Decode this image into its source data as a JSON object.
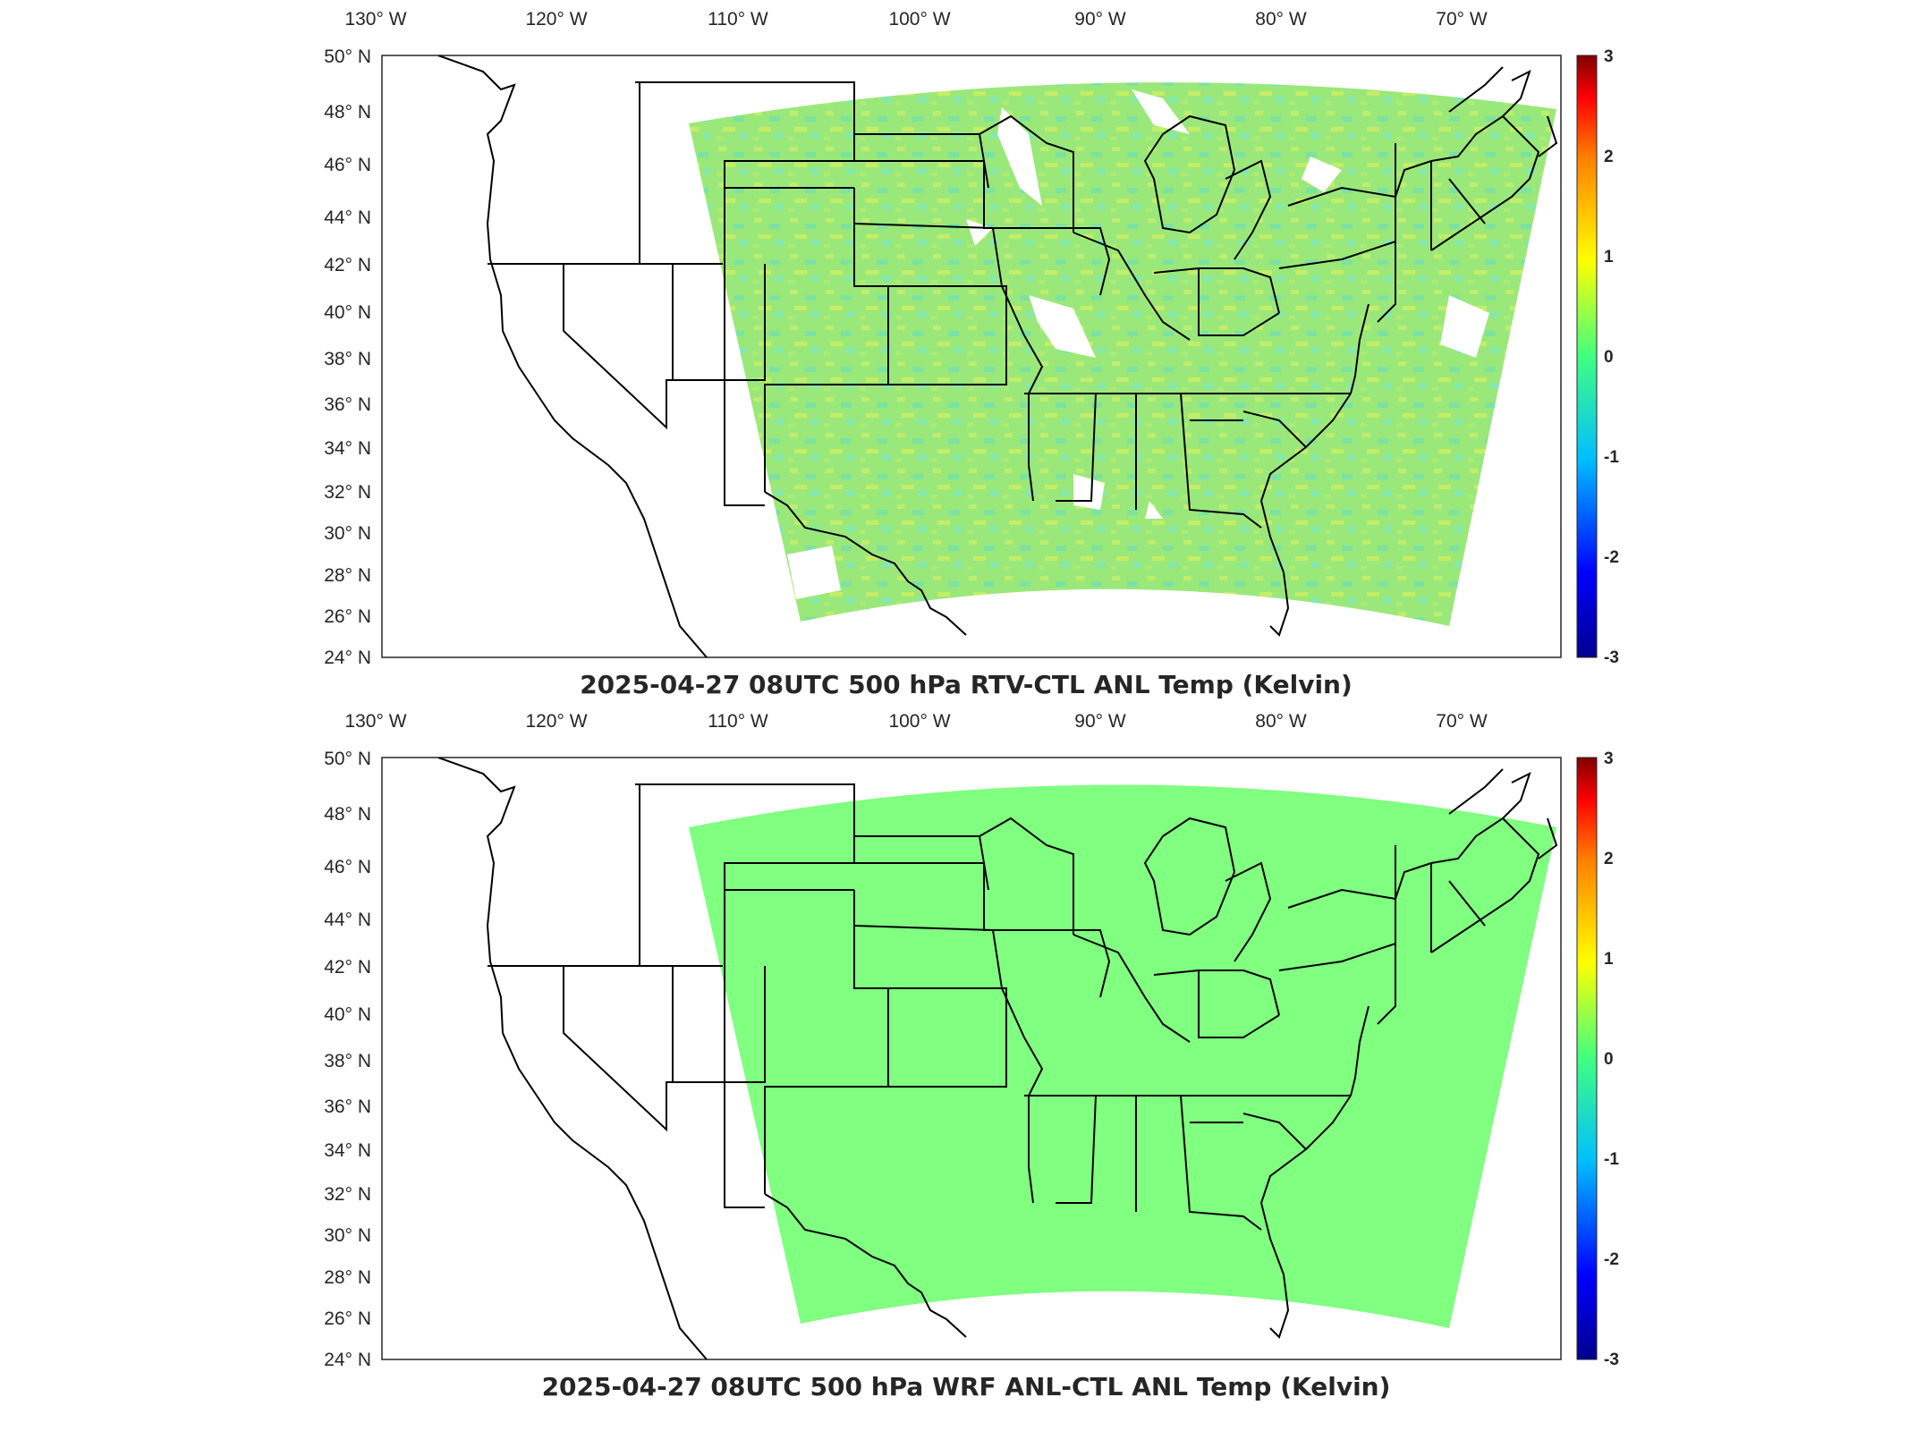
{
  "colorbar": {
    "ticks": [
      "3",
      "2",
      "1",
      "0",
      "-1",
      "-2",
      "-3"
    ],
    "colors": [
      "#00008f",
      "#0000ff",
      "#00bfff",
      "#40ff80",
      "#ffff00",
      "#ff8000",
      "#ff0000",
      "#800000"
    ]
  },
  "axes": {
    "lon_labels": [
      "130° W",
      "120° W",
      "110° W",
      "100° W",
      "90° W",
      "80° W",
      "70° W"
    ],
    "lat_labels": [
      "50° N",
      "48° N",
      "46° N",
      "44° N",
      "42° N",
      "40° N",
      "38° N",
      "36° N",
      "34° N",
      "32° N",
      "30° N",
      "28° N",
      "26° N",
      "24° N"
    ]
  },
  "panels": [
    {
      "title": "2025-04-27 08UTC 500 hPa RTV-CTL ANL Temp (Kelvin)",
      "field_color": "#9be87a",
      "field_style": "noisy"
    },
    {
      "title": "2025-04-27 08UTC 500 hPa WRF ANL-CTL ANL Temp (Kelvin)",
      "field_color": "#80ff80",
      "field_style": "uniform"
    }
  ]
}
